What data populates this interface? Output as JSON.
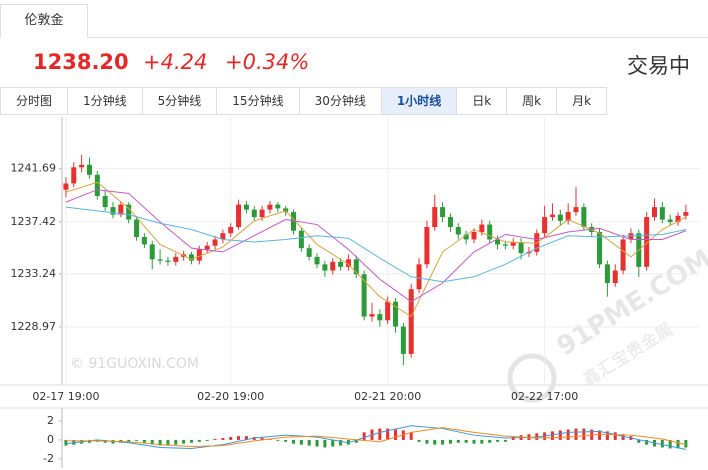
{
  "header": {
    "tab": "伦敦金",
    "price": "1238.20",
    "change": "+4.24",
    "change_pct": "+0.34%",
    "status": "交易中"
  },
  "periods": [
    "分时图",
    "1分钟线",
    "5分钟线",
    "15分钟线",
    "30分钟线",
    "1小时线",
    "日k",
    "周k",
    "月k"
  ],
  "active_period": 5,
  "watermarks": [
    "© 91GUOXIN.COM",
    "91PME.COM",
    "鑫汇宝贵金属"
  ],
  "chart_data": [
    {
      "type": "candlestick",
      "up_color": "#e8312f",
      "down_color": "#2b9b3a",
      "grid": true,
      "xlim": [
        -0.5,
        80.8
      ],
      "ylim": [
        1224.3,
        1244.8
      ],
      "yticks": [
        1228.97,
        1233.24,
        1237.42,
        1241.69
      ],
      "xticks": [
        {
          "value": 0,
          "label": "02-17 19:00"
        },
        {
          "value": 21,
          "label": "02-20 19:00"
        },
        {
          "value": 41,
          "label": "02-21 20:00"
        },
        {
          "value": 61,
          "label": "02-22 17:00"
        }
      ],
      "ohlc": [
        [
          1240.0,
          1241.0,
          1239.4,
          1240.5
        ],
        [
          1240.5,
          1242.2,
          1240.2,
          1241.8
        ],
        [
          1241.8,
          1242.8,
          1241.4,
          1242.0
        ],
        [
          1242.0,
          1242.6,
          1240.9,
          1241.2
        ],
        [
          1241.2,
          1241.5,
          1239.2,
          1239.5
        ],
        [
          1239.5,
          1239.9,
          1238.3,
          1238.6
        ],
        [
          1238.6,
          1239.0,
          1237.7,
          1238.0
        ],
        [
          1238.0,
          1239.1,
          1237.8,
          1238.8
        ],
        [
          1238.8,
          1239.0,
          1237.3,
          1237.6
        ],
        [
          1237.6,
          1237.9,
          1235.9,
          1236.2
        ],
        [
          1236.2,
          1236.5,
          1235.3,
          1235.6
        ],
        [
          1235.6,
          1235.9,
          1233.6,
          1234.4
        ],
        [
          1234.4,
          1235.2,
          1234.0,
          1234.3
        ],
        [
          1234.3,
          1234.6,
          1233.9,
          1234.2
        ],
        [
          1234.2,
          1234.9,
          1233.9,
          1234.6
        ],
        [
          1234.6,
          1235.1,
          1234.3,
          1234.8
        ],
        [
          1234.8,
          1235.0,
          1234.0,
          1234.3
        ],
        [
          1234.3,
          1235.5,
          1234.0,
          1235.2
        ],
        [
          1235.2,
          1235.8,
          1234.9,
          1235.5
        ],
        [
          1235.5,
          1236.3,
          1235.2,
          1236.0
        ],
        [
          1236.0,
          1236.8,
          1235.7,
          1236.5
        ],
        [
          1236.5,
          1237.3,
          1236.2,
          1237.0
        ],
        [
          1237.0,
          1239.2,
          1236.8,
          1238.8
        ],
        [
          1238.8,
          1239.1,
          1238.1,
          1238.4
        ],
        [
          1238.4,
          1238.7,
          1237.5,
          1237.8
        ],
        [
          1237.8,
          1238.7,
          1237.5,
          1238.4
        ],
        [
          1238.4,
          1239.1,
          1238.1,
          1238.8
        ],
        [
          1238.8,
          1239.0,
          1238.2,
          1238.5
        ],
        [
          1238.5,
          1238.7,
          1237.9,
          1238.2
        ],
        [
          1238.2,
          1238.4,
          1236.4,
          1236.7
        ],
        [
          1236.7,
          1237.0,
          1235.0,
          1235.3
        ],
        [
          1235.3,
          1235.6,
          1234.3,
          1234.6
        ],
        [
          1234.6,
          1234.9,
          1233.7,
          1234.0
        ],
        [
          1234.0,
          1234.3,
          1233.0,
          1233.5
        ],
        [
          1233.5,
          1234.5,
          1233.2,
          1234.2
        ],
        [
          1234.2,
          1234.5,
          1233.5,
          1233.8
        ],
        [
          1233.8,
          1234.8,
          1233.5,
          1234.4
        ],
        [
          1234.4,
          1234.7,
          1232.9,
          1233.2
        ],
        [
          1233.2,
          1233.5,
          1229.5,
          1229.8
        ],
        [
          1229.8,
          1230.9,
          1229.4,
          1230.0
        ],
        [
          1230.0,
          1230.4,
          1229.0,
          1229.5
        ],
        [
          1229.5,
          1231.4,
          1229.2,
          1231.0
        ],
        [
          1231.0,
          1231.3,
          1228.5,
          1229.0
        ],
        [
          1229.0,
          1229.3,
          1225.9,
          1226.8
        ],
        [
          1226.8,
          1232.4,
          1226.5,
          1232.0
        ],
        [
          1232.0,
          1234.5,
          1231.7,
          1234.0
        ],
        [
          1234.0,
          1237.5,
          1233.7,
          1237.0
        ],
        [
          1237.0,
          1239.6,
          1236.7,
          1238.6
        ],
        [
          1238.6,
          1239.0,
          1237.4,
          1237.8
        ],
        [
          1237.8,
          1238.1,
          1236.6,
          1237.0
        ],
        [
          1237.0,
          1237.3,
          1236.0,
          1236.4
        ],
        [
          1236.4,
          1236.7,
          1235.6,
          1236.0
        ],
        [
          1236.0,
          1236.9,
          1235.7,
          1236.6
        ],
        [
          1236.6,
          1237.6,
          1236.3,
          1237.2
        ],
        [
          1237.2,
          1237.5,
          1235.7,
          1236.0
        ],
        [
          1236.0,
          1236.3,
          1235.2,
          1235.6
        ],
        [
          1235.6,
          1235.9,
          1235.2,
          1235.5
        ],
        [
          1235.5,
          1236.1,
          1235.2,
          1235.8
        ],
        [
          1235.8,
          1236.1,
          1234.4,
          1234.9
        ],
        [
          1234.9,
          1235.4,
          1234.6,
          1235.0
        ],
        [
          1235.0,
          1236.8,
          1234.7,
          1236.5
        ],
        [
          1236.5,
          1238.7,
          1236.2,
          1237.8
        ],
        [
          1237.8,
          1238.9,
          1237.5,
          1238.0
        ],
        [
          1238.0,
          1238.4,
          1237.1,
          1237.5
        ],
        [
          1237.5,
          1238.9,
          1237.2,
          1238.2
        ],
        [
          1238.2,
          1240.2,
          1237.9,
          1238.6
        ],
        [
          1238.6,
          1238.9,
          1236.7,
          1237.0
        ],
        [
          1237.0,
          1237.3,
          1236.2,
          1236.6
        ],
        [
          1236.6,
          1236.9,
          1233.7,
          1234.0
        ],
        [
          1234.0,
          1234.3,
          1231.4,
          1232.5
        ],
        [
          1232.5,
          1234.0,
          1232.2,
          1233.5
        ],
        [
          1233.5,
          1236.4,
          1233.2,
          1236.0
        ],
        [
          1236.0,
          1236.9,
          1235.7,
          1236.5
        ],
        [
          1236.5,
          1236.8,
          1233.0,
          1233.8
        ],
        [
          1233.8,
          1238.2,
          1233.5,
          1237.8
        ],
        [
          1237.8,
          1239.3,
          1237.5,
          1238.6
        ],
        [
          1238.6,
          1239.0,
          1237.3,
          1237.6
        ],
        [
          1237.6,
          1238.0,
          1237.1,
          1237.4
        ],
        [
          1237.4,
          1238.2,
          1237.1,
          1237.9
        ],
        [
          1237.9,
          1238.8,
          1237.6,
          1238.2
        ]
      ],
      "lines": [
        {
          "color": "#d9a441",
          "x": [
            0,
            4,
            8,
            12,
            16,
            20,
            24,
            28,
            32,
            36,
            40,
            44,
            48,
            52,
            56,
            60,
            64,
            68,
            72,
            76,
            79
          ],
          "values": [
            1239.8,
            1240.6,
            1238.5,
            1235.6,
            1234.4,
            1235.4,
            1237.5,
            1238.3,
            1235.6,
            1234.0,
            1231.4,
            1229.8,
            1235.0,
            1236.8,
            1235.8,
            1235.7,
            1237.6,
            1236.5,
            1234.6,
            1236.8,
            1237.8
          ]
        },
        {
          "color": "#c45ac5",
          "x": [
            0,
            4,
            8,
            12,
            16,
            20,
            24,
            28,
            32,
            36,
            40,
            44,
            48,
            52,
            56,
            60,
            64,
            68,
            72,
            76,
            79
          ],
          "values": [
            1239.0,
            1240.0,
            1239.7,
            1237.4,
            1235.3,
            1235.0,
            1236.3,
            1237.6,
            1237.2,
            1235.2,
            1232.8,
            1231.0,
            1232.5,
            1235.0,
            1236.4,
            1236.0,
            1236.6,
            1236.9,
            1236.0,
            1236.0,
            1236.7
          ]
        },
        {
          "color": "#5ab4e0",
          "x": [
            0,
            4,
            8,
            12,
            16,
            20,
            24,
            28,
            32,
            36,
            40,
            44,
            48,
            52,
            56,
            60,
            64,
            68,
            72,
            76,
            79
          ],
          "values": [
            1238.6,
            1238.3,
            1238.0,
            1237.3,
            1236.8,
            1236.0,
            1235.8,
            1236.0,
            1236.3,
            1236.1,
            1234.5,
            1233.0,
            1232.6,
            1233.0,
            1234.0,
            1235.3,
            1236.3,
            1236.2,
            1236.3,
            1236.4,
            1236.8
          ]
        }
      ]
    },
    {
      "type": "bar",
      "up_color": "#e8312f",
      "down_color": "#2b9b3a",
      "xlim": [
        -0.5,
        80.8
      ],
      "ylim": [
        -2.65,
        2.95
      ],
      "yticks": [
        -2,
        0,
        2
      ],
      "values": [
        -0.6,
        -0.5,
        -0.4,
        -0.3,
        -0.2,
        -0.3,
        -0.4,
        -0.3,
        -0.2,
        -0.1,
        -0.3,
        -0.5,
        -0.6,
        -0.6,
        -0.5,
        -0.4,
        -0.3,
        -0.2,
        -0.1,
        0.1,
        0.2,
        0.3,
        0.4,
        0.4,
        0.3,
        0.2,
        0.1,
        -0.1,
        -0.2,
        -0.4,
        -0.5,
        -0.6,
        -0.7,
        -0.8,
        -0.7,
        -0.6,
        -0.5,
        -0.3,
        0.8,
        1.1,
        1.2,
        1.2,
        1.1,
        1.0,
        0.8,
        -0.2,
        -0.4,
        -0.5,
        -0.5,
        -0.4,
        -0.3,
        -0.3,
        -0.4,
        -0.4,
        -0.3,
        -0.2,
        -0.2,
        0.3,
        0.5,
        0.6,
        0.7,
        0.8,
        0.9,
        1.0,
        1.1,
        1.2,
        1.2,
        1.1,
        1.0,
        0.9,
        0.8,
        0.6,
        0.4,
        -0.3,
        -0.5,
        -0.7,
        -0.8,
        -0.9,
        -0.9,
        -0.8
      ],
      "lines": [
        {
          "color": "#3a9ad9",
          "x": [
            0,
            4,
            8,
            12,
            16,
            20,
            24,
            28,
            32,
            36,
            40,
            44,
            48,
            52,
            56,
            60,
            64,
            68,
            72,
            76,
            79
          ],
          "values": [
            -0.4,
            0.0,
            -0.3,
            -0.8,
            -0.9,
            -0.5,
            0.2,
            0.5,
            0.3,
            -0.3,
            0.8,
            1.5,
            1.2,
            0.5,
            0.2,
            0.3,
            0.8,
            0.9,
            0.2,
            -0.5,
            -1.0
          ]
        },
        {
          "color": "#f08a24",
          "x": [
            0,
            4,
            8,
            12,
            16,
            20,
            24,
            28,
            32,
            36,
            40,
            44,
            48,
            52,
            56,
            60,
            64,
            68,
            72,
            76,
            79
          ],
          "values": [
            -0.1,
            -0.1,
            -0.2,
            -0.5,
            -0.7,
            -0.6,
            -0.1,
            0.3,
            0.4,
            0.1,
            -0.2,
            0.8,
            1.3,
            0.8,
            0.4,
            0.2,
            0.3,
            0.6,
            0.5,
            0.1,
            -0.5
          ]
        }
      ]
    }
  ]
}
